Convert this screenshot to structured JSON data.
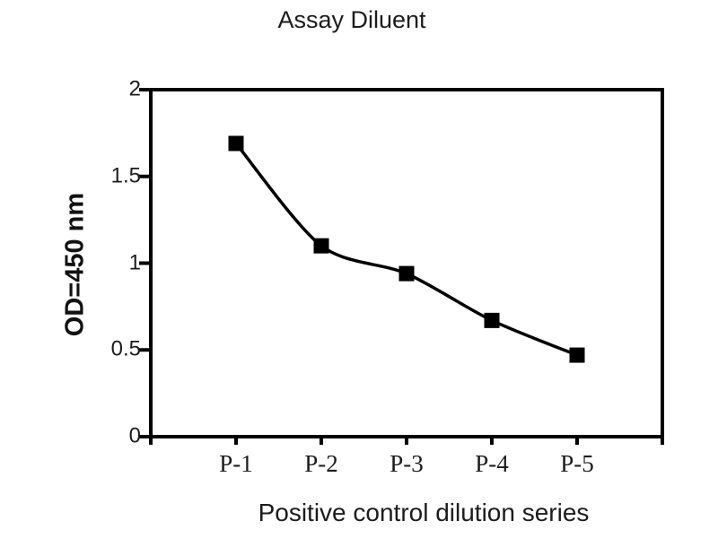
{
  "page": {
    "background_color": "#ffffff",
    "line_color": "#000000",
    "marker_color": "#000000",
    "text_color": "#1c1c1c"
  },
  "chart_data": {
    "type": "line",
    "title": "Assay Diluent",
    "xlabel": "Positive control dilution series",
    "ylabel": "OD=450 nm",
    "categories": [
      "P-1",
      "P-2",
      "P-3",
      "P-4",
      "P-5"
    ],
    "values": [
      1.69,
      1.1,
      0.94,
      0.67,
      0.47
    ],
    "ylim": [
      0,
      2
    ],
    "yticks": [
      0,
      0.5,
      1,
      1.5,
      2
    ],
    "ytick_labels": [
      "0",
      "0.5",
      "1",
      "1.5",
      "2"
    ],
    "grid": false,
    "legend": false,
    "marker": "square",
    "smooth": true
  }
}
